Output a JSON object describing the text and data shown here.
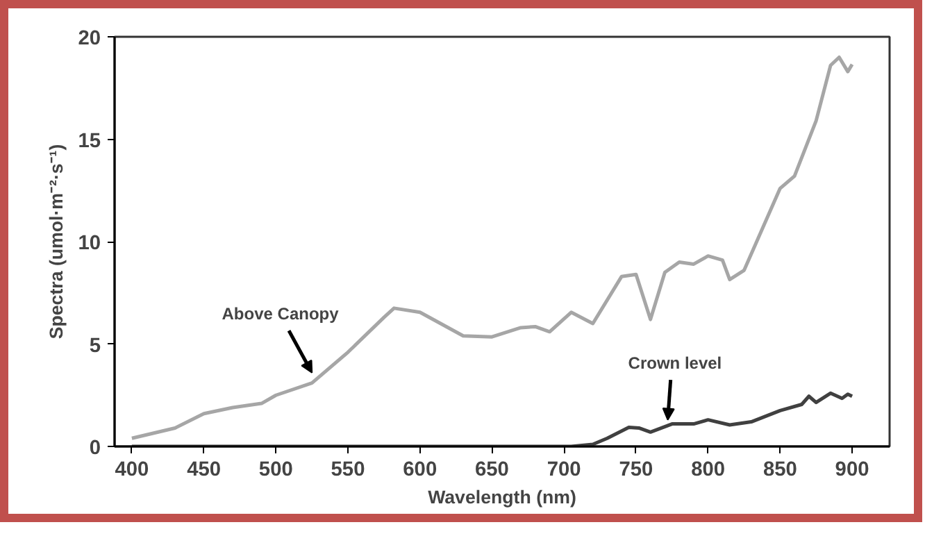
{
  "chart_data": {
    "type": "line",
    "xlabel": "Wavelength (nm)",
    "ylabel": "Spectra (umol·m⁻²·s⁻¹)",
    "xlim": [
      388,
      926
    ],
    "ylim": [
      0,
      20
    ],
    "xticks": [
      400,
      450,
      500,
      550,
      600,
      650,
      700,
      750,
      800,
      850,
      900
    ],
    "yticks": [
      0,
      5,
      10,
      15,
      20
    ],
    "grid": false,
    "line_style": "solid",
    "marker": "none",
    "series": [
      {
        "color": "#a6a6a6",
        "x": [
          400,
          430,
          450,
          470,
          490,
          500,
          525,
          550,
          575,
          582,
          600,
          630,
          650,
          670,
          680,
          690,
          705,
          720,
          740,
          750,
          760,
          770,
          780,
          790,
          800,
          810,
          815,
          825,
          850,
          860,
          875,
          885,
          891,
          897,
          900
        ],
        "values": [
          0.4,
          0.9,
          1.6,
          1.9,
          2.1,
          2.5,
          3.1,
          4.6,
          6.3,
          6.75,
          6.55,
          5.4,
          5.35,
          5.8,
          5.85,
          5.6,
          6.55,
          6.0,
          8.3,
          8.4,
          6.2,
          8.5,
          9.0,
          8.9,
          9.3,
          9.1,
          8.15,
          8.6,
          12.6,
          13.2,
          15.9,
          18.6,
          19.0,
          18.3,
          18.65
        ]
      },
      {
        "color": "#404040",
        "x": [
          400,
          705,
          720,
          730,
          745,
          752,
          760,
          775,
          790,
          800,
          815,
          830,
          850,
          865,
          870,
          875,
          885,
          893,
          897,
          900
        ],
        "values": [
          0,
          0,
          0.1,
          0.4,
          0.93,
          0.9,
          0.7,
          1.1,
          1.1,
          1.3,
          1.05,
          1.2,
          1.75,
          2.05,
          2.45,
          2.15,
          2.6,
          2.35,
          2.55,
          2.45
        ]
      }
    ],
    "annotations": [
      {
        "text": "Above Canopy",
        "x": 525,
        "y": 3.6
      },
      {
        "text": "Crown level",
        "x": 772,
        "y": 1.3
      }
    ]
  }
}
